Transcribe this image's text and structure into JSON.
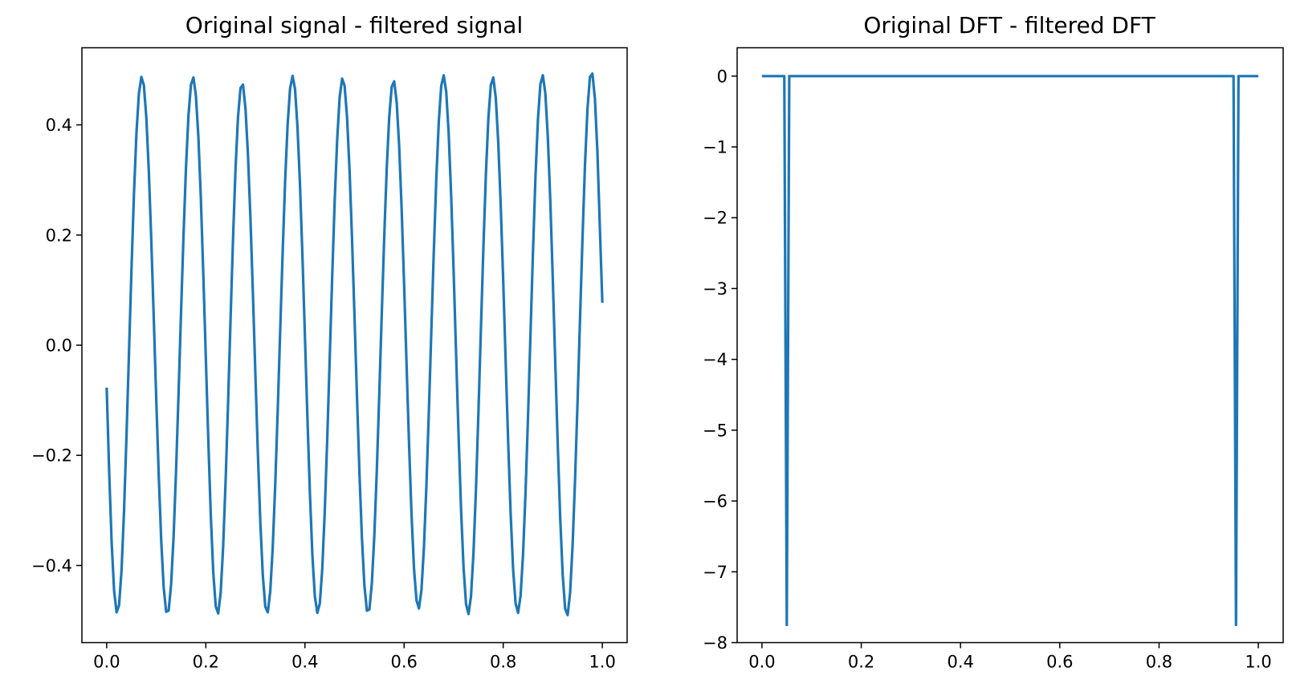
{
  "chart_data": [
    {
      "type": "line",
      "title": "Original signal - filtered signal",
      "xlabel": "",
      "ylabel": "",
      "xlim": [
        -0.05,
        1.05
      ],
      "ylim": [
        -0.54,
        0.54
      ],
      "xticks": [
        0.0,
        0.2,
        0.4,
        0.6,
        0.8,
        1.0
      ],
      "yticks": [
        -0.4,
        -0.2,
        0.0,
        0.2,
        0.4
      ],
      "xtick_labels": [
        "0.0",
        "0.2",
        "0.4",
        "0.6",
        "0.8",
        "1.0"
      ],
      "ytick_labels": [
        "−0.4",
        "−0.2",
        "0.0",
        "0.2",
        "0.4"
      ],
      "grid": false,
      "legend": false,
      "color": "#1f77b4",
      "series": [
        {
          "name": "",
          "x": [
            0.0,
            0.005,
            0.01,
            0.015,
            0.02,
            0.025,
            0.03,
            0.035,
            0.04,
            0.045,
            0.05,
            0.055,
            0.06,
            0.065,
            0.07,
            0.075,
            0.08,
            0.085,
            0.09,
            0.095,
            0.1,
            0.105,
            0.11,
            0.115,
            0.12,
            0.125,
            0.13,
            0.135,
            0.14,
            0.145,
            0.15,
            0.155,
            0.16,
            0.165,
            0.17,
            0.175,
            0.18,
            0.185,
            0.19,
            0.195,
            0.2,
            0.205,
            0.21,
            0.215,
            0.22,
            0.225,
            0.23,
            0.235,
            0.24,
            0.245,
            0.25,
            0.255,
            0.26,
            0.265,
            0.27,
            0.275,
            0.28,
            0.285,
            0.29,
            0.295,
            0.3,
            0.305,
            0.31,
            0.315,
            0.32,
            0.325,
            0.33,
            0.335,
            0.34,
            0.345,
            0.35,
            0.355,
            0.36,
            0.365,
            0.37,
            0.375,
            0.38,
            0.385,
            0.39,
            0.395,
            0.4,
            0.405,
            0.41,
            0.415,
            0.42,
            0.425,
            0.43,
            0.435,
            0.44,
            0.445,
            0.45,
            0.455,
            0.46,
            0.465,
            0.47,
            0.475,
            0.48,
            0.485,
            0.49,
            0.495,
            0.5,
            0.505,
            0.51,
            0.515,
            0.52,
            0.525,
            0.53,
            0.535,
            0.54,
            0.545,
            0.55,
            0.555,
            0.56,
            0.565,
            0.57,
            0.575,
            0.58,
            0.585,
            0.59,
            0.595,
            0.6,
            0.605,
            0.61,
            0.615,
            0.62,
            0.625,
            0.63,
            0.635,
            0.64,
            0.645,
            0.65,
            0.655,
            0.66,
            0.665,
            0.67,
            0.675,
            0.68,
            0.685,
            0.69,
            0.695,
            0.7,
            0.705,
            0.71,
            0.715,
            0.72,
            0.725,
            0.73,
            0.735,
            0.74,
            0.745,
            0.75,
            0.755,
            0.76,
            0.765,
            0.77,
            0.775,
            0.78,
            0.785,
            0.79,
            0.795,
            0.8,
            0.805,
            0.81,
            0.815,
            0.82,
            0.825,
            0.83,
            0.835,
            0.84,
            0.845,
            0.85,
            0.855,
            0.86,
            0.865,
            0.87,
            0.875,
            0.88,
            0.885,
            0.89,
            0.895,
            0.9,
            0.905,
            0.91,
            0.915,
            0.92,
            0.925,
            0.93,
            0.935,
            0.94,
            0.945,
            0.95,
            0.955,
            0.96,
            0.965,
            0.97,
            0.975,
            0.98,
            0.985,
            0.99,
            0.995,
            1.0
          ],
          "y": [
            -0.077,
            -0.23,
            -0.358,
            -0.446,
            -0.485,
            -0.472,
            -0.408,
            -0.301,
            -0.164,
            -0.013,
            0.137,
            0.274,
            0.384,
            0.457,
            0.487,
            0.472,
            0.413,
            0.316,
            0.19,
            0.048,
            -0.098,
            -0.236,
            -0.354,
            -0.44,
            -0.484,
            -0.482,
            -0.434,
            -0.347,
            -0.227,
            -0.088,
            0.059,
            0.199,
            0.323,
            0.417,
            0.473,
            0.486,
            0.453,
            0.378,
            0.266,
            0.127,
            -0.023,
            -0.172,
            -0.308,
            -0.412,
            -0.474,
            -0.487,
            -0.449,
            -0.365,
            -0.245,
            -0.102,
            0.05,
            0.196,
            0.322,
            0.415,
            0.467,
            0.473,
            0.43,
            0.346,
            0.231,
            0.094,
            -0.053,
            -0.196,
            -0.322,
            -0.418,
            -0.475,
            -0.485,
            -0.447,
            -0.367,
            -0.254,
            -0.12,
            0.025,
            0.168,
            0.298,
            0.4,
            0.466,
            0.489,
            0.465,
            0.395,
            0.291,
            0.16,
            0.015,
            -0.132,
            -0.269,
            -0.381,
            -0.456,
            -0.486,
            -0.469,
            -0.405,
            -0.301,
            -0.169,
            -0.022,
            0.125,
            0.262,
            0.373,
            0.45,
            0.484,
            0.471,
            0.413,
            0.317,
            0.193,
            0.051,
            -0.095,
            -0.233,
            -0.351,
            -0.437,
            -0.482,
            -0.48,
            -0.432,
            -0.345,
            -0.227,
            -0.088,
            0.058,
            0.198,
            0.321,
            0.414,
            0.469,
            0.479,
            0.442,
            0.363,
            0.249,
            0.112,
            -0.035,
            -0.179,
            -0.307,
            -0.405,
            -0.463,
            -0.478,
            -0.445,
            -0.368,
            -0.256,
            -0.12,
            0.027,
            0.171,
            0.302,
            0.406,
            0.471,
            0.49,
            0.46,
            0.384,
            0.271,
            0.133,
            -0.018,
            -0.166,
            -0.299,
            -0.404,
            -0.47,
            -0.488,
            -0.456,
            -0.377,
            -0.262,
            -0.122,
            0.029,
            0.177,
            0.309,
            0.411,
            0.472,
            0.486,
            0.449,
            0.368,
            0.253,
            0.117,
            -0.031,
            -0.176,
            -0.306,
            -0.407,
            -0.469,
            -0.486,
            -0.455,
            -0.38,
            -0.268,
            -0.131,
            0.019,
            0.168,
            0.304,
            0.409,
            0.474,
            0.49,
            0.457,
            0.378,
            0.262,
            0.121,
            -0.031,
            -0.18,
            -0.314,
            -0.417,
            -0.479,
            -0.49,
            -0.449,
            -0.363,
            -0.242,
            -0.102,
            0.048,
            0.196,
            0.328,
            0.429,
            0.487,
            0.493,
            0.448,
            0.352,
            0.213,
            0.077
          ]
        }
      ]
    },
    {
      "type": "line",
      "title": "Original DFT - filtered DFT",
      "xlabel": "",
      "ylabel": "",
      "xlim": [
        -0.05,
        1.05
      ],
      "ylim": [
        -8.0,
        0.4
      ],
      "xticks": [
        0.0,
        0.2,
        0.4,
        0.6,
        0.8,
        1.0
      ],
      "yticks": [
        0,
        -1,
        -2,
        -3,
        -4,
        -5,
        -6,
        -7,
        -8
      ],
      "xtick_labels": [
        "0.0",
        "0.2",
        "0.4",
        "0.6",
        "0.8",
        "1.0"
      ],
      "ytick_labels": [
        "0",
        "−1",
        "−2",
        "−3",
        "−4",
        "−5",
        "−6",
        "−7",
        "−8"
      ],
      "grid": false,
      "legend": false,
      "color": "#1f77b4",
      "series": [
        {
          "name": "",
          "x": [
            0.0,
            0.045,
            0.05,
            0.055,
            0.95,
            0.955,
            0.96,
            1.0
          ],
          "y": [
            0,
            0,
            -7.75,
            0,
            0,
            -7.75,
            0,
            0
          ]
        }
      ]
    }
  ]
}
